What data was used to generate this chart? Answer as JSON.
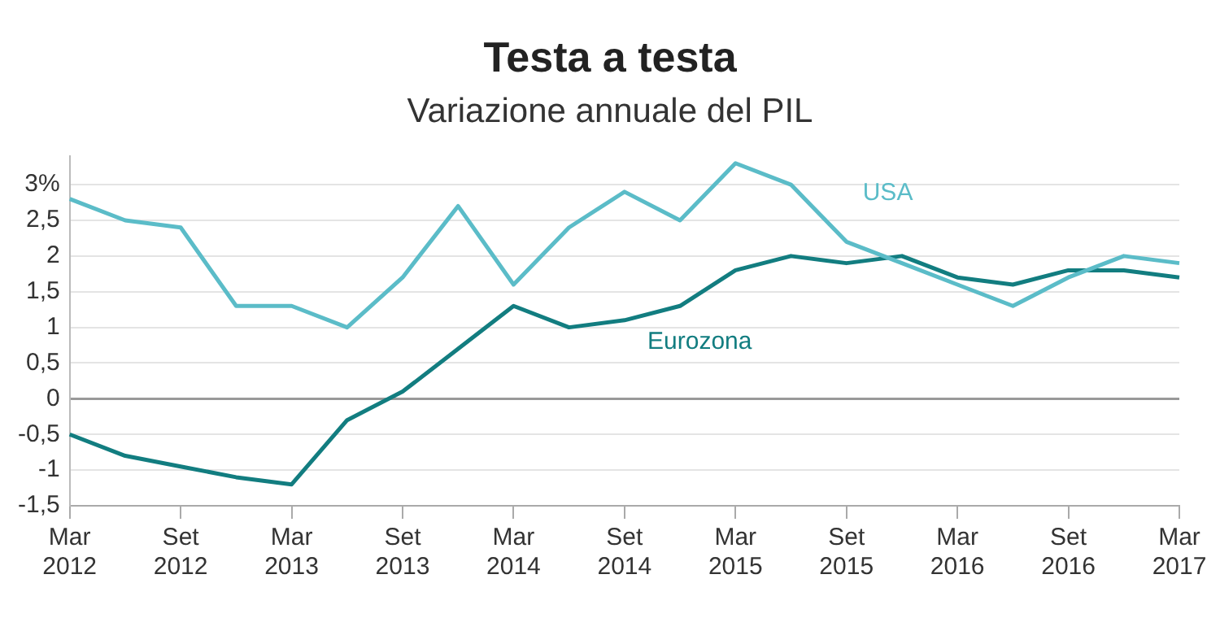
{
  "chart_data": {
    "type": "line",
    "title": "Testa a testa",
    "subtitle": "Variazione annuale del PIL",
    "categories": [
      "Mar 2012",
      null,
      "Set 2012",
      null,
      "Mar 2013",
      null,
      "Set 2013",
      null,
      "Mar 2014",
      null,
      "Set 2014",
      null,
      "Mar 2015",
      null,
      "Set 2015",
      null,
      "Mar 2016",
      null,
      "Set 2016",
      null,
      "Mar 2017"
    ],
    "series": [
      {
        "name": "USA",
        "color": "#5bbcc8",
        "values": [
          2.8,
          2.5,
          2.4,
          1.3,
          1.3,
          1.0,
          1.7,
          2.7,
          1.6,
          2.4,
          2.9,
          2.5,
          3.3,
          3.0,
          2.2,
          1.9,
          1.6,
          1.3,
          1.7,
          2.0,
          1.9
        ]
      },
      {
        "name": "Eurozona",
        "color": "#127d80",
        "values": [
          -0.5,
          -0.8,
          -0.95,
          -1.1,
          -1.2,
          -0.3,
          0.1,
          0.7,
          1.3,
          1.0,
          1.1,
          1.3,
          1.8,
          2.0,
          1.9,
          2.0,
          1.7,
          1.6,
          1.8,
          1.8,
          1.7
        ]
      }
    ],
    "ylim": [
      -1.5,
      3.4
    ],
    "yticks": [
      {
        "value": -1.5,
        "label": "-1,5"
      },
      -1,
      {
        "value": -0.5,
        "label": "-0,5"
      },
      0,
      {
        "value": 0.5,
        "label": "0,5"
      },
      1,
      {
        "value": 1.5,
        "label": "1,5"
      },
      2,
      {
        "value": 2.5,
        "label": "2,5"
      },
      {
        "value": 3,
        "label": "3%"
      }
    ],
    "grid": "y",
    "legend": false,
    "marker": "none",
    "line_style": "solid"
  }
}
